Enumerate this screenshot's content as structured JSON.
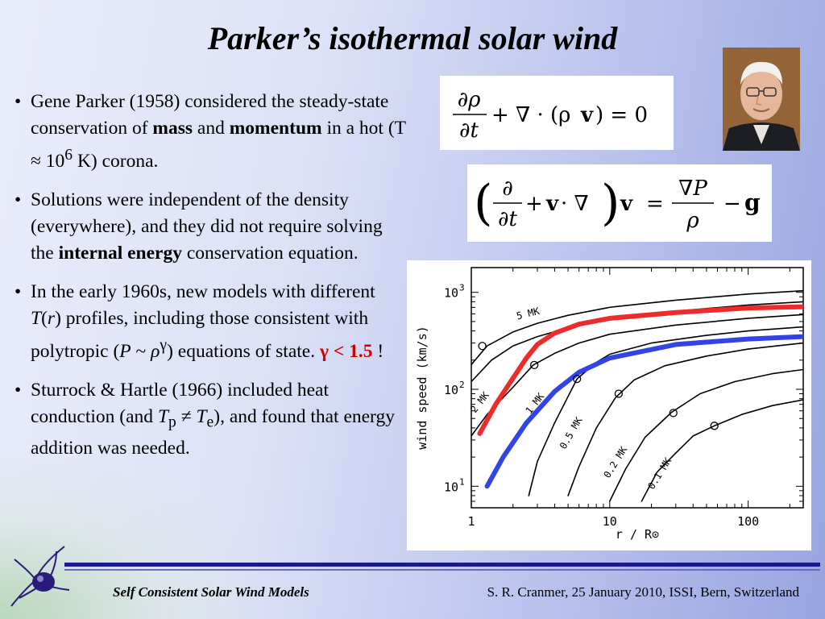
{
  "slide": {
    "title": "Parker’s isothermal solar wind"
  },
  "bullets": [
    {
      "b1_pre": "Gene Parker (1958) considered the steady-state conservation of ",
      "b1_mass": "mass",
      "b1_and": " and ",
      "b1_momentum": "momentum",
      "b1_mid": " in a hot (T ≈ 10",
      "b1_sup": "6",
      "b1_end": " K) corona."
    },
    {
      "b2_pre": "Solutions were independent of the density (everywhere), and they did not require solving the ",
      "b2_bold": "internal energy",
      "b2_end": " conservation equation."
    },
    {
      "b3_pre": "In the early 1960s, new models with different ",
      "b3_T": "T",
      "b3_paren_open": "(",
      "b3_r": "r",
      "b3_mid": ") profiles, including those consistent with polytropic  (",
      "b3_P": "P",
      "b3_tilde": " ~ ",
      "b3_rho": "ρ",
      "b3_gamma": "γ",
      "b3_close": ")",
      "b3_eos": " equations of state.  ",
      "b3_red": "γ < 1.5",
      "b3_bang": "  !"
    },
    {
      "b4_pre": "Sturrock & Hartle (1966) included heat conduction (and ",
      "b4_Tp": "T",
      "b4_p": "p",
      "b4_ne": " ≠ ",
      "b4_Te": "T",
      "b4_e": "e",
      "b4_end": "), and found that energy addition was needed."
    }
  ],
  "bullet_symbol": "•",
  "equations": {
    "eq1": {
      "d1": "∂ρ",
      "d2": "∂t",
      "plus": "+ ∇ · (ρ",
      "v": "v",
      "rest": ")  =  0"
    },
    "eq2": {
      "lparen": "(",
      "d1": "∂",
      "d2": "∂t",
      "mid": "+ ",
      "v1": "v",
      "dot": " · ∇",
      "rparen": ")",
      "v2": "v",
      "eq": "=",
      "n1": "∇P",
      "n2": "ρ",
      "minus": "−",
      "g": "g"
    }
  },
  "footer": {
    "left": "Self Consistent Solar Wind Models",
    "right": "S. R. Cranmer,  25 January 2010,  ISSI, Bern, Switzerland"
  },
  "colors": {
    "accent_red": "#cc0000",
    "footer_line": "#1a1a8c",
    "series_red": "#ee2b2b",
    "series_blue": "#3344e6"
  },
  "chart_data": {
    "type": "line",
    "xscale": "log",
    "yscale": "log",
    "xlim": [
      1,
      250
    ],
    "ylim": [
      6,
      1800
    ],
    "xlabel": "r / R⊙",
    "ylabel": "wind speed (km/s)",
    "xticks": [
      {
        "value": 1,
        "label": "1"
      },
      {
        "value": 10,
        "label": "10"
      },
      {
        "value": 100,
        "label": "100"
      }
    ],
    "yticks": [
      {
        "value": 10,
        "base": "10",
        "exp": "1"
      },
      {
        "value": 100,
        "base": "10",
        "exp": "2"
      },
      {
        "value": 1000,
        "base": "10",
        "exp": "3"
      }
    ],
    "series": [
      {
        "name": "5 MK",
        "color": "#000000",
        "points": [
          [
            1.0,
            180
          ],
          [
            1.3,
            280
          ],
          [
            2,
            390
          ],
          [
            3,
            480
          ],
          [
            5,
            580
          ],
          [
            10,
            700
          ],
          [
            30,
            830
          ],
          [
            100,
            960
          ],
          [
            250,
            1040
          ]
        ],
        "label_at": [
          1.45,
          0.0
        ]
      },
      {
        "name": "",
        "color": "#000000",
        "points": [
          [
            1.0,
            120
          ],
          [
            1.4,
            200
          ],
          [
            2,
            280
          ],
          [
            3,
            350
          ],
          [
            5,
            430
          ],
          [
            10,
            530
          ],
          [
            30,
            640
          ],
          [
            100,
            740
          ],
          [
            250,
            800
          ]
        ]
      },
      {
        "name": "2 MK",
        "color": "#000000",
        "points": [
          [
            1.0,
            33
          ],
          [
            1.3,
            55
          ],
          [
            2,
            105
          ],
          [
            2.8,
            178
          ],
          [
            4,
            235
          ],
          [
            6,
            300
          ],
          [
            10,
            370
          ],
          [
            30,
            460
          ],
          [
            100,
            540
          ],
          [
            250,
            590
          ]
        ],
        "label_at": [
          1.08,
          90
        ]
      },
      {
        "name": "1 MK",
        "color": "#000000",
        "points": [
          [
            2.6,
            8
          ],
          [
            3,
            18
          ],
          [
            4,
            45
          ],
          [
            5.8,
            128
          ],
          [
            8,
            190
          ],
          [
            10,
            230
          ],
          [
            20,
            300
          ],
          [
            50,
            360
          ],
          [
            100,
            400
          ],
          [
            250,
            440
          ]
        ],
        "label_at": [
          2.55,
          55
        ]
      },
      {
        "name": "0.5 MK",
        "color": "#000000",
        "points": [
          [
            5,
            8
          ],
          [
            6,
            16
          ],
          [
            8,
            40
          ],
          [
            11,
            82
          ],
          [
            15,
            125
          ],
          [
            25,
            175
          ],
          [
            50,
            220
          ],
          [
            100,
            260
          ],
          [
            250,
            300
          ]
        ],
        "label_at": [
          4.6,
          17
        ]
      },
      {
        "name": "0.2 MK",
        "color": "#000000",
        "points": [
          [
            10,
            7
          ],
          [
            13,
            15
          ],
          [
            18,
            32
          ],
          [
            28,
            58
          ],
          [
            45,
            90
          ],
          [
            80,
            120
          ],
          [
            150,
            145
          ],
          [
            250,
            160
          ]
        ],
        "label_at": [
          9.8,
          8.5
        ]
      },
      {
        "name": "0.1 MK",
        "color": "#000000",
        "points": [
          [
            17,
            7
          ],
          [
            22,
            14
          ],
          [
            30,
            22
          ],
          [
            40,
            33
          ],
          [
            57,
            42
          ],
          [
            90,
            55
          ],
          [
            150,
            68
          ],
          [
            250,
            78
          ]
        ],
        "label_at": [
          19,
          7.2
        ]
      },
      {
        "name": "",
        "color": "#ee2b2b",
        "width": 6,
        "points": [
          [
            1.15,
            35
          ],
          [
            1.5,
            70
          ],
          [
            2,
            130
          ],
          [
            2.5,
            210
          ],
          [
            3,
            290
          ],
          [
            4,
            380
          ],
          [
            6,
            470
          ],
          [
            10,
            540
          ],
          [
            30,
            620
          ],
          [
            100,
            690
          ],
          [
            250,
            710
          ]
        ]
      },
      {
        "name": "",
        "color": "#3344e6",
        "width": 6,
        "points": [
          [
            1.3,
            10
          ],
          [
            1.7,
            20
          ],
          [
            2.5,
            45
          ],
          [
            4,
            95
          ],
          [
            6,
            150
          ],
          [
            10,
            210
          ],
          [
            30,
            290
          ],
          [
            100,
            330
          ],
          [
            250,
            350
          ]
        ]
      }
    ],
    "critical_points": [
      [
        1.2,
        280
      ],
      [
        2.85,
        178
      ],
      [
        5.8,
        128
      ],
      [
        11.6,
        90
      ],
      [
        28.8,
        57
      ],
      [
        57,
        42
      ]
    ]
  }
}
